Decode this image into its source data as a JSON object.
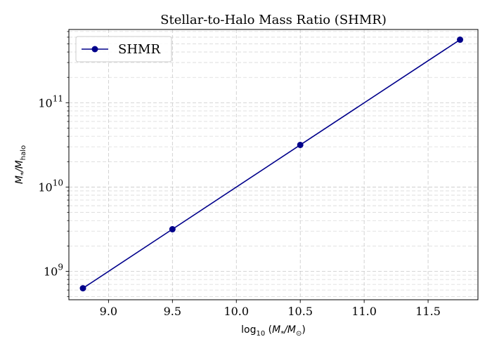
{
  "chart_data": {
    "type": "line",
    "title": "Stellar-to-Halo Mass Ratio (SHMR)",
    "xlabel": "log10 (M* / M⊙)",
    "ylabel": "M* / Mhalo",
    "x_ticks": [
      9.0,
      9.5,
      10.0,
      10.5,
      11.0,
      11.5
    ],
    "x_tick_labels": [
      "9.0",
      "9.5",
      "10.0",
      "10.5",
      "11.0",
      "11.5"
    ],
    "y_scale": "log",
    "y_ticks": [
      1000000000.0,
      10000000000.0,
      100000000000.0
    ],
    "y_tick_bases": [
      "10",
      "10",
      "10"
    ],
    "y_tick_exponents": [
      "9",
      "10",
      "11"
    ],
    "xlim": [
      8.69,
      11.89
    ],
    "ylim": [
      460000000.0,
      740000000000.0
    ],
    "grid": true,
    "legend": {
      "placement": "top-left",
      "entries": [
        "SHMR"
      ]
    },
    "series": [
      {
        "name": "SHMR",
        "color": "#00008b",
        "marker": "circle",
        "x": [
          8.8,
          9.5,
          10.5,
          11.75
        ],
        "y": [
          630000000.0,
          3160000000.0,
          31600000000.0,
          560000000000.0
        ]
      }
    ]
  }
}
